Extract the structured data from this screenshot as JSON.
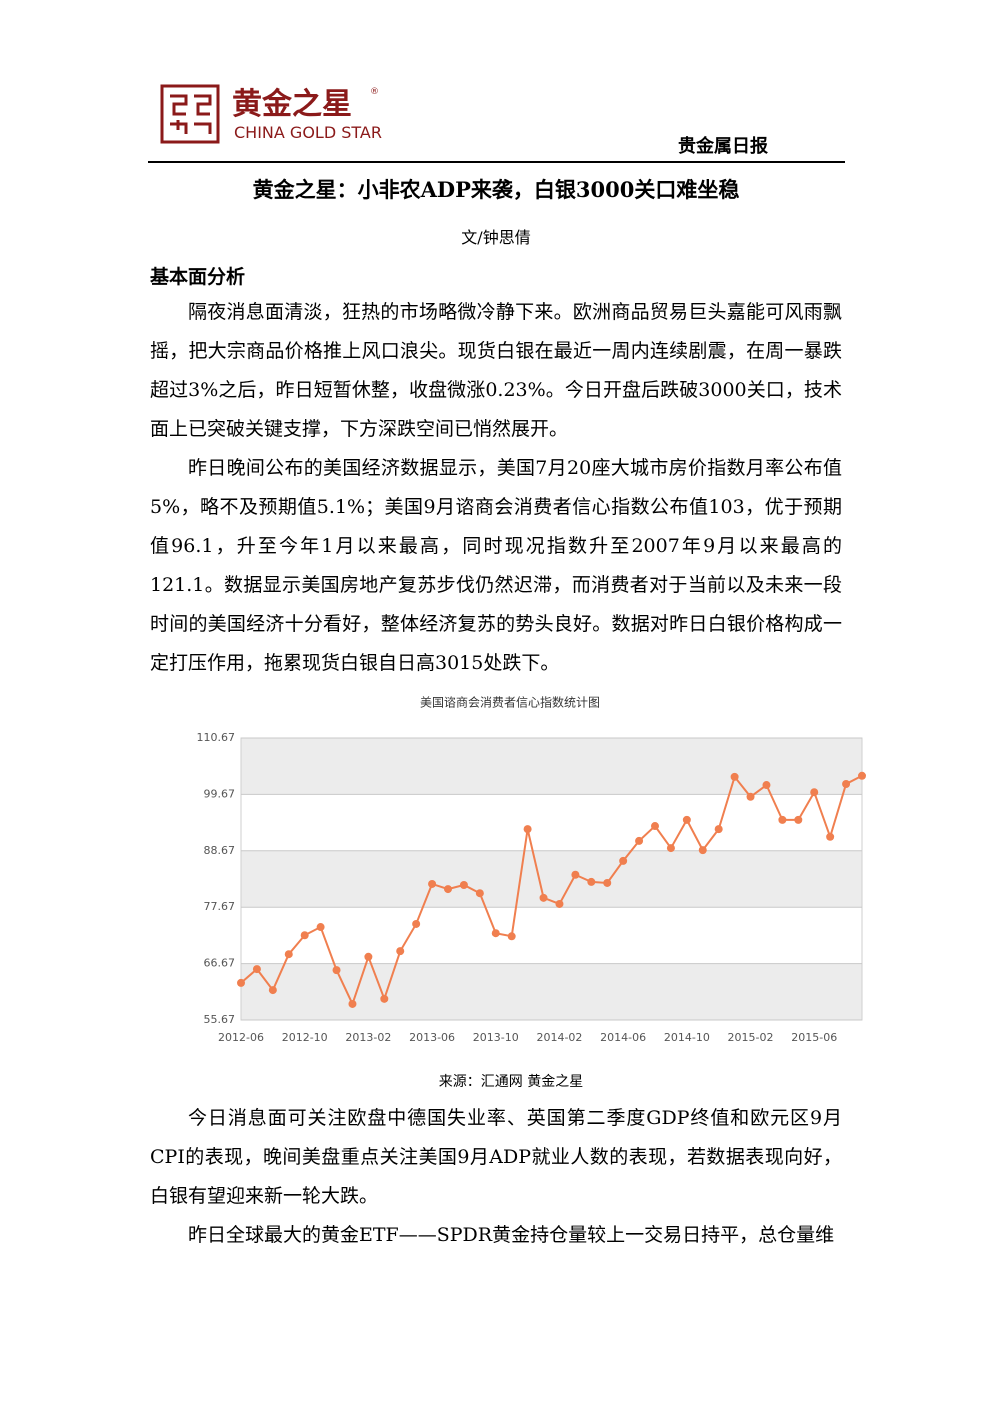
{
  "header": {
    "logo_cn": "黄金之星",
    "logo_mark": "®",
    "logo_en": "CHINA GOLD STAR",
    "section": "贵金属日报"
  },
  "article": {
    "title": "黄金之星：小非农ADP来袭，白银3000关口难坐稳",
    "author": "文/钟思倩",
    "heading": "基本面分析",
    "paragraphs": [
      "隔夜消息面清淡，狂热的市场略微冷静下来。欧洲商品贸易巨头嘉能可风雨飘摇，把大宗商品价格推上风口浪尖。现货白银在最近一周内连续剧震，在周一暴跌超过3%之后，昨日短暂休整，收盘微涨0.23%。今日开盘后跌破3000关口，技术面上已突破关键支撑，下方深跌空间已悄然展开。",
      "昨日晚间公布的美国经济数据显示，美国7月20座大城市房价指数月率公布值5%，略不及预期值5.1%；美国9月谘商会消费者信心指数公布值103，优于预期值96.1，升至今年1月以来最高，同时现况指数升至2007年9月以来最高的121.1。数据显示美国房地产复苏步伐仍然迟滞，而消费者对于当前以及未来一段时间的美国经济十分看好，整体经济复苏的势头良好。数据对昨日白银价格构成一定打压作用，拖累现货白银自日高3015处跌下。"
    ],
    "chart_source": "来源：汇通网 黄金之星",
    "paragraphs_after": [
      "今日消息面可关注欧盘中德国失业率、英国第二季度GDP终值和欧元区9月CPI的表现，晚间美盘重点关注美国9月ADP就业人数的表现，若数据表现向好，白银有望迎来新一轮大跌。",
      "昨日全球最大的黄金ETF——SPDR黄金持仓量较上一交易日持平，总仓量维"
    ]
  },
  "chart_data": {
    "type": "line",
    "title": "美国谘商会消费者信心指数统计图",
    "categories": [
      "2012-06",
      null,
      null,
      null,
      "2012-10",
      null,
      null,
      null,
      "2013-02",
      null,
      null,
      null,
      "2013-06",
      null,
      null,
      null,
      "2013-10",
      null,
      null,
      null,
      "2014-02",
      null,
      null,
      null,
      "2014-06",
      null,
      null,
      null,
      "2014-10",
      null,
      null,
      null,
      "2015-02",
      null,
      null,
      null,
      "2015-06",
      null,
      null,
      null
    ],
    "values": [
      62.9,
      65.6,
      61.5,
      68.5,
      72.2,
      73.8,
      65.4,
      58.8,
      68.0,
      59.8,
      69.1,
      74.4,
      82.2,
      81.2,
      82.0,
      80.4,
      72.6,
      72.0,
      92.9,
      79.5,
      78.3,
      84.0,
      82.6,
      82.4,
      86.7,
      90.6,
      93.5,
      89.2,
      94.7,
      88.8,
      92.9,
      103.1,
      99.2,
      101.5,
      94.7,
      94.7,
      100.1,
      91.4,
      101.7,
      103.3
    ],
    "color": "#f07f4f",
    "ylim": [
      55.67,
      110.67
    ],
    "yticks": [
      55.67,
      66.67,
      77.67,
      88.67,
      99.67,
      110.67
    ],
    "grid": true
  }
}
